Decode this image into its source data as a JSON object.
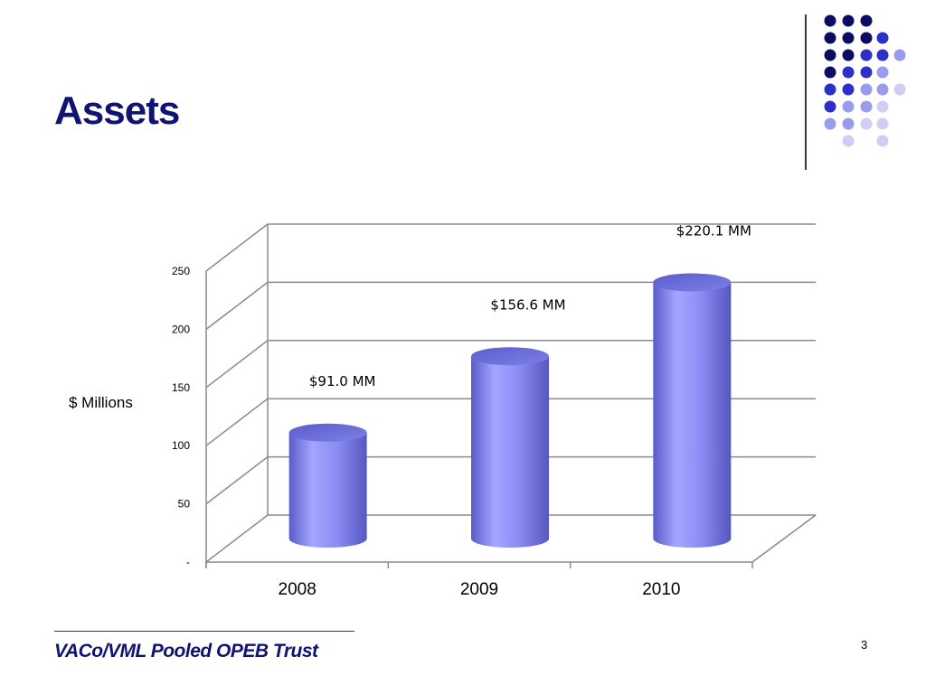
{
  "slide": {
    "title": "Assets",
    "footer": "VACo/VML Pooled OPEB Trust",
    "page_number": "3"
  },
  "colors": {
    "title": "#0f1470",
    "bar": "#8a8cf5",
    "dot_palette": [
      "#0c0c63",
      "#2e2ec8",
      "#9b9bee",
      "#cfcff6"
    ]
  },
  "chart_data": {
    "type": "bar",
    "categories": [
      "2008",
      "2009",
      "2010"
    ],
    "values": [
      91.0,
      156.6,
      220.1
    ],
    "data_labels": [
      "$91.0 MM",
      "$156.6 MM",
      "$220.1 MM"
    ],
    "ylabel": "$ Millions",
    "ylim": [
      0,
      250
    ],
    "yticks": [
      0,
      50,
      100,
      150,
      200,
      250
    ],
    "ytick_labels": [
      "-",
      "50",
      "100",
      "150",
      "200",
      "250"
    ],
    "grid": true,
    "style": "3d-cylinder"
  }
}
